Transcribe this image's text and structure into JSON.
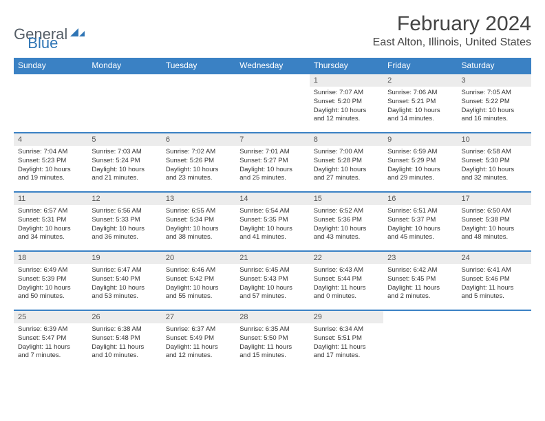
{
  "brand": {
    "general": "General",
    "blue": "Blue"
  },
  "title": "February 2024",
  "location": "East Alton, Illinois, United States",
  "colors": {
    "header_bg": "#3a81c4",
    "header_text": "#ffffff",
    "day_num_bg": "#ececec",
    "rule": "#3a81c4",
    "text": "#333333",
    "brand_gray": "#555e67",
    "brand_blue": "#2f75b5"
  },
  "day_headers": [
    "Sunday",
    "Monday",
    "Tuesday",
    "Wednesday",
    "Thursday",
    "Friday",
    "Saturday"
  ],
  "weeks": [
    [
      null,
      null,
      null,
      null,
      {
        "n": "1",
        "sr": "Sunrise: 7:07 AM",
        "ss": "Sunset: 5:20 PM",
        "d1": "Daylight: 10 hours",
        "d2": "and 12 minutes."
      },
      {
        "n": "2",
        "sr": "Sunrise: 7:06 AM",
        "ss": "Sunset: 5:21 PM",
        "d1": "Daylight: 10 hours",
        "d2": "and 14 minutes."
      },
      {
        "n": "3",
        "sr": "Sunrise: 7:05 AM",
        "ss": "Sunset: 5:22 PM",
        "d1": "Daylight: 10 hours",
        "d2": "and 16 minutes."
      }
    ],
    [
      {
        "n": "4",
        "sr": "Sunrise: 7:04 AM",
        "ss": "Sunset: 5:23 PM",
        "d1": "Daylight: 10 hours",
        "d2": "and 19 minutes."
      },
      {
        "n": "5",
        "sr": "Sunrise: 7:03 AM",
        "ss": "Sunset: 5:24 PM",
        "d1": "Daylight: 10 hours",
        "d2": "and 21 minutes."
      },
      {
        "n": "6",
        "sr": "Sunrise: 7:02 AM",
        "ss": "Sunset: 5:26 PM",
        "d1": "Daylight: 10 hours",
        "d2": "and 23 minutes."
      },
      {
        "n": "7",
        "sr": "Sunrise: 7:01 AM",
        "ss": "Sunset: 5:27 PM",
        "d1": "Daylight: 10 hours",
        "d2": "and 25 minutes."
      },
      {
        "n": "8",
        "sr": "Sunrise: 7:00 AM",
        "ss": "Sunset: 5:28 PM",
        "d1": "Daylight: 10 hours",
        "d2": "and 27 minutes."
      },
      {
        "n": "9",
        "sr": "Sunrise: 6:59 AM",
        "ss": "Sunset: 5:29 PM",
        "d1": "Daylight: 10 hours",
        "d2": "and 29 minutes."
      },
      {
        "n": "10",
        "sr": "Sunrise: 6:58 AM",
        "ss": "Sunset: 5:30 PM",
        "d1": "Daylight: 10 hours",
        "d2": "and 32 minutes."
      }
    ],
    [
      {
        "n": "11",
        "sr": "Sunrise: 6:57 AM",
        "ss": "Sunset: 5:31 PM",
        "d1": "Daylight: 10 hours",
        "d2": "and 34 minutes."
      },
      {
        "n": "12",
        "sr": "Sunrise: 6:56 AM",
        "ss": "Sunset: 5:33 PM",
        "d1": "Daylight: 10 hours",
        "d2": "and 36 minutes."
      },
      {
        "n": "13",
        "sr": "Sunrise: 6:55 AM",
        "ss": "Sunset: 5:34 PM",
        "d1": "Daylight: 10 hours",
        "d2": "and 38 minutes."
      },
      {
        "n": "14",
        "sr": "Sunrise: 6:54 AM",
        "ss": "Sunset: 5:35 PM",
        "d1": "Daylight: 10 hours",
        "d2": "and 41 minutes."
      },
      {
        "n": "15",
        "sr": "Sunrise: 6:52 AM",
        "ss": "Sunset: 5:36 PM",
        "d1": "Daylight: 10 hours",
        "d2": "and 43 minutes."
      },
      {
        "n": "16",
        "sr": "Sunrise: 6:51 AM",
        "ss": "Sunset: 5:37 PM",
        "d1": "Daylight: 10 hours",
        "d2": "and 45 minutes."
      },
      {
        "n": "17",
        "sr": "Sunrise: 6:50 AM",
        "ss": "Sunset: 5:38 PM",
        "d1": "Daylight: 10 hours",
        "d2": "and 48 minutes."
      }
    ],
    [
      {
        "n": "18",
        "sr": "Sunrise: 6:49 AM",
        "ss": "Sunset: 5:39 PM",
        "d1": "Daylight: 10 hours",
        "d2": "and 50 minutes."
      },
      {
        "n": "19",
        "sr": "Sunrise: 6:47 AM",
        "ss": "Sunset: 5:40 PM",
        "d1": "Daylight: 10 hours",
        "d2": "and 53 minutes."
      },
      {
        "n": "20",
        "sr": "Sunrise: 6:46 AM",
        "ss": "Sunset: 5:42 PM",
        "d1": "Daylight: 10 hours",
        "d2": "and 55 minutes."
      },
      {
        "n": "21",
        "sr": "Sunrise: 6:45 AM",
        "ss": "Sunset: 5:43 PM",
        "d1": "Daylight: 10 hours",
        "d2": "and 57 minutes."
      },
      {
        "n": "22",
        "sr": "Sunrise: 6:43 AM",
        "ss": "Sunset: 5:44 PM",
        "d1": "Daylight: 11 hours",
        "d2": "and 0 minutes."
      },
      {
        "n": "23",
        "sr": "Sunrise: 6:42 AM",
        "ss": "Sunset: 5:45 PM",
        "d1": "Daylight: 11 hours",
        "d2": "and 2 minutes."
      },
      {
        "n": "24",
        "sr": "Sunrise: 6:41 AM",
        "ss": "Sunset: 5:46 PM",
        "d1": "Daylight: 11 hours",
        "d2": "and 5 minutes."
      }
    ],
    [
      {
        "n": "25",
        "sr": "Sunrise: 6:39 AM",
        "ss": "Sunset: 5:47 PM",
        "d1": "Daylight: 11 hours",
        "d2": "and 7 minutes."
      },
      {
        "n": "26",
        "sr": "Sunrise: 6:38 AM",
        "ss": "Sunset: 5:48 PM",
        "d1": "Daylight: 11 hours",
        "d2": "and 10 minutes."
      },
      {
        "n": "27",
        "sr": "Sunrise: 6:37 AM",
        "ss": "Sunset: 5:49 PM",
        "d1": "Daylight: 11 hours",
        "d2": "and 12 minutes."
      },
      {
        "n": "28",
        "sr": "Sunrise: 6:35 AM",
        "ss": "Sunset: 5:50 PM",
        "d1": "Daylight: 11 hours",
        "d2": "and 15 minutes."
      },
      {
        "n": "29",
        "sr": "Sunrise: 6:34 AM",
        "ss": "Sunset: 5:51 PM",
        "d1": "Daylight: 11 hours",
        "d2": "and 17 minutes."
      },
      null,
      null
    ]
  ]
}
